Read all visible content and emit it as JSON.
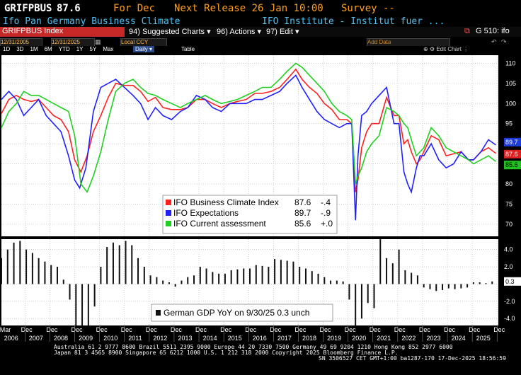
{
  "header": {
    "ticker": "GRIFPBUS",
    "price": "87.6",
    "for_label": "For Dec",
    "next_release": "Next Release 26 Jan 10:00",
    "survey": "Survey --",
    "description": "Ifo Pan Germany Business Climate",
    "source": "IFO Institute - Institut fuer ..."
  },
  "toolbar": {
    "index_label": "GRIFPBUS Index",
    "suggested_charts": "94) Suggested Charts",
    "actions": "96) Actions",
    "edit": "97) Edit",
    "function_code": "G 510: ifo"
  },
  "date_bar": {
    "start": "12/31/2005",
    "end": "12/31/2025",
    "currency": "Local CCY",
    "ranges": [
      "1D",
      "3D",
      "1M",
      "6M",
      "YTD",
      "1Y",
      "5Y",
      "Max"
    ],
    "period": "Daily",
    "table": "Table"
  },
  "chart_tools": {
    "add_data": "Add Data",
    "edit_chart": "Edit Chart"
  },
  "chart_data": {
    "type": "line",
    "x_start": 2006.0,
    "x_end": 2026.0,
    "ylim": [
      67,
      112
    ],
    "yticks": [
      70,
      75,
      80,
      85,
      90,
      95,
      100,
      105,
      110
    ],
    "series": [
      {
        "name": "IFO Business Climate Index",
        "color": "#ff2020",
        "last": "87.6",
        "change": "-.4",
        "x": [
          2006.0,
          2006.3,
          2006.6,
          2006.9,
          2007.2,
          2007.5,
          2007.8,
          2008.1,
          2008.4,
          2008.7,
          2008.95,
          2009.2,
          2009.45,
          2009.7,
          2010.0,
          2010.3,
          2010.6,
          2010.95,
          2011.3,
          2011.6,
          2011.9,
          2012.2,
          2012.5,
          2012.85,
          2013.2,
          2013.5,
          2013.85,
          2014.2,
          2014.5,
          2014.85,
          2015.2,
          2015.5,
          2015.85,
          2016.2,
          2016.5,
          2016.85,
          2017.2,
          2017.5,
          2017.85,
          2018.1,
          2018.4,
          2018.7,
          2019.0,
          2019.3,
          2019.6,
          2019.9,
          2020.1,
          2020.25,
          2020.35,
          2020.5,
          2020.7,
          2020.9,
          2021.2,
          2021.5,
          2021.8,
          2022.0,
          2022.2,
          2022.35,
          2022.5,
          2022.7,
          2022.85,
          2023.0,
          2023.3,
          2023.6,
          2023.9,
          2024.2,
          2024.5,
          2024.8,
          2025.0,
          2025.3,
          2025.6,
          2025.9
        ],
        "values": [
          97.5,
          101,
          102,
          101,
          100.5,
          101,
          99,
          97,
          96,
          93,
          86,
          83,
          87,
          93,
          97,
          101.5,
          105,
          104.5,
          104.5,
          103,
          100.5,
          101.5,
          99,
          98.5,
          98.5,
          99,
          101,
          101,
          100,
          99,
          100,
          100.5,
          101,
          102.5,
          102.5,
          103,
          104,
          106,
          108.5,
          106,
          104,
          102.5,
          100,
          98.5,
          96,
          96,
          95,
          78,
          81,
          89,
          93,
          95,
          95,
          101.5,
          97,
          97,
          90,
          91,
          88,
          85,
          86,
          88,
          92,
          91,
          87,
          87.5,
          88,
          86,
          86,
          88,
          89,
          87.6
        ]
      },
      {
        "name": "IFO Expectations",
        "color": "#2020ff",
        "last": "89.7",
        "change": "-.9",
        "x": [
          2006.0,
          2006.3,
          2006.6,
          2006.9,
          2007.2,
          2007.5,
          2007.8,
          2008.1,
          2008.4,
          2008.7,
          2008.95,
          2009.15,
          2009.4,
          2009.7,
          2010.0,
          2010.3,
          2010.6,
          2010.95,
          2011.3,
          2011.6,
          2011.9,
          2012.2,
          2012.5,
          2012.85,
          2013.2,
          2013.5,
          2013.85,
          2014.2,
          2014.5,
          2014.85,
          2015.2,
          2015.5,
          2015.85,
          2016.2,
          2016.5,
          2016.85,
          2017.2,
          2017.5,
          2017.85,
          2018.1,
          2018.4,
          2018.7,
          2019.0,
          2019.3,
          2019.6,
          2019.9,
          2020.1,
          2020.25,
          2020.35,
          2020.5,
          2020.7,
          2020.9,
          2021.2,
          2021.5,
          2021.8,
          2022.0,
          2022.2,
          2022.35,
          2022.5,
          2022.7,
          2022.85,
          2023.0,
          2023.3,
          2023.6,
          2023.9,
          2024.2,
          2024.5,
          2024.8,
          2025.0,
          2025.3,
          2025.6,
          2025.9
        ],
        "values": [
          101,
          103,
          101,
          97,
          99,
          101,
          97,
          95,
          93,
          87,
          81,
          79,
          84,
          98,
          104,
          105,
          106,
          104,
          102,
          100,
          96,
          99,
          97,
          96,
          98,
          99,
          102,
          101,
          99,
          98,
          100,
          100,
          100,
          101,
          101,
          102,
          103,
          105,
          107,
          104,
          101,
          98,
          96,
          95,
          94,
          95,
          95,
          71,
          87,
          97,
          98,
          100,
          102,
          104,
          95,
          95,
          83,
          80,
          78,
          84,
          87,
          87,
          90,
          86,
          84,
          85,
          88,
          86,
          86,
          88,
          91,
          89.7
        ]
      },
      {
        "name": "IFO Current assessment",
        "color": "#20d020",
        "last": "85.6",
        "change": "+.0",
        "x": [
          2006.0,
          2006.3,
          2006.6,
          2006.9,
          2007.2,
          2007.5,
          2007.8,
          2008.1,
          2008.4,
          2008.7,
          2008.95,
          2009.2,
          2009.45,
          2009.7,
          2010.0,
          2010.3,
          2010.6,
          2010.95,
          2011.3,
          2011.6,
          2011.9,
          2012.2,
          2012.5,
          2012.85,
          2013.2,
          2013.5,
          2013.85,
          2014.2,
          2014.5,
          2014.85,
          2015.2,
          2015.5,
          2015.85,
          2016.2,
          2016.5,
          2016.85,
          2017.2,
          2017.5,
          2017.85,
          2018.1,
          2018.4,
          2018.7,
          2019.0,
          2019.3,
          2019.6,
          2019.9,
          2020.1,
          2020.25,
          2020.35,
          2020.5,
          2020.7,
          2020.9,
          2021.2,
          2021.5,
          2021.8,
          2022.0,
          2022.2,
          2022.35,
          2022.5,
          2022.7,
          2022.85,
          2023.0,
          2023.3,
          2023.6,
          2023.9,
          2024.2,
          2024.5,
          2024.8,
          2025.0,
          2025.3,
          2025.6,
          2025.9
        ],
        "values": [
          94,
          98,
          100,
          103,
          102,
          102,
          101,
          100,
          99,
          98,
          92,
          80,
          78,
          82,
          88,
          96,
          103,
          105,
          106,
          104,
          102.5,
          102,
          101,
          100,
          99,
          100,
          101,
          102,
          101,
          100,
          100.5,
          101,
          102,
          103,
          104,
          104,
          106,
          108,
          110,
          109,
          107,
          105,
          103,
          100,
          98,
          97,
          96,
          80,
          82,
          84,
          88,
          90,
          92,
          99,
          98,
          97,
          95,
          94,
          91,
          87,
          88,
          89,
          94,
          92,
          89,
          88,
          87,
          86,
          85,
          86,
          87,
          85.6
        ]
      },
      {
        "name": "German GDP YoY",
        "color": "#ffffff",
        "date": "9/30/25",
        "last": "0.3",
        "change": "unch",
        "ylim": [
          -4.8,
          5.2
        ],
        "yticks": [
          4.0,
          2.0,
          0.0,
          -2.0,
          -4.0
        ],
        "x": [
          2006.0,
          2006.25,
          2006.5,
          2006.75,
          2007.0,
          2007.25,
          2007.5,
          2007.75,
          2008.0,
          2008.25,
          2008.5,
          2008.75,
          2009.0,
          2009.25,
          2009.5,
          2009.75,
          2010.0,
          2010.25,
          2010.5,
          2010.75,
          2011.0,
          2011.25,
          2011.5,
          2011.75,
          2012.0,
          2012.25,
          2012.5,
          2012.75,
          2013.0,
          2013.25,
          2013.5,
          2013.75,
          2014.0,
          2014.25,
          2014.5,
          2014.75,
          2015.0,
          2015.25,
          2015.5,
          2015.75,
          2016.0,
          2016.25,
          2016.5,
          2016.75,
          2017.0,
          2017.25,
          2017.5,
          2017.75,
          2018.0,
          2018.25,
          2018.5,
          2018.75,
          2019.0,
          2019.25,
          2019.5,
          2019.75,
          2020.0,
          2020.25,
          2020.5,
          2020.75,
          2021.0,
          2021.25,
          2021.5,
          2021.75,
          2022.0,
          2022.25,
          2022.5,
          2022.75,
          2023.0,
          2023.25,
          2023.5,
          2023.75,
          2024.0,
          2024.25,
          2024.5,
          2024.75,
          2025.0,
          2025.25,
          2025.5,
          2025.75
        ],
        "values": [
          3.0,
          4.0,
          4.8,
          5.0,
          4.0,
          3.6,
          3.0,
          2.6,
          2.2,
          2.0,
          0.5,
          -1.8,
          -4.8,
          -6.5,
          -5.0,
          -2.6,
          2.0,
          4.3,
          4.8,
          4.5,
          5.0,
          4.5,
          3.0,
          2.0,
          1.0,
          0.8,
          0.4,
          0.2,
          -0.3,
          0.4,
          0.8,
          1.0,
          2.0,
          1.8,
          1.4,
          1.2,
          1.2,
          1.6,
          1.7,
          1.8,
          1.8,
          2.2,
          2.1,
          2.0,
          2.9,
          2.8,
          2.7,
          2.6,
          2.0,
          1.8,
          1.5,
          1.2,
          0.8,
          0.4,
          0.4,
          0.3,
          -1.8,
          -11.0,
          -4.0,
          -2.2,
          -2.8,
          9.8,
          3.0,
          2.4,
          4.0,
          1.6,
          1.3,
          1.0,
          -0.4,
          -0.6,
          -0.8,
          -0.7,
          -0.5,
          -0.6,
          -0.5,
          -0.4,
          0.2,
          0.2,
          0.1,
          0.3
        ]
      }
    ],
    "x_year_labels": [
      "2006",
      "2007",
      "2008",
      "2009",
      "2010",
      "2011",
      "2012",
      "2013",
      "2014",
      "2015",
      "2016",
      "2017",
      "2018",
      "2019",
      "2020",
      "2021",
      "2022",
      "2023",
      "2024",
      "2025"
    ],
    "x_month_labels": [
      "Mar",
      "Dec"
    ]
  },
  "footer": {
    "line1": "Australia 61 2 9777 8600 Brazil 5511 2395 9000 Europe 44 20 7330 7500 Germany 49 69 9204 1210 Hong Kong 852 2977 6000",
    "line2": "Japan 81 3 4565 8900        Singapore 65 6212 1000        U.S. 1 212 318 2000            Copyright 2025 Bloomberg Finance L.P.",
    "line3": "SN 3506527 CET  GMT+1:00 ba1287-170 17-Dec-2025 18:56:59"
  }
}
